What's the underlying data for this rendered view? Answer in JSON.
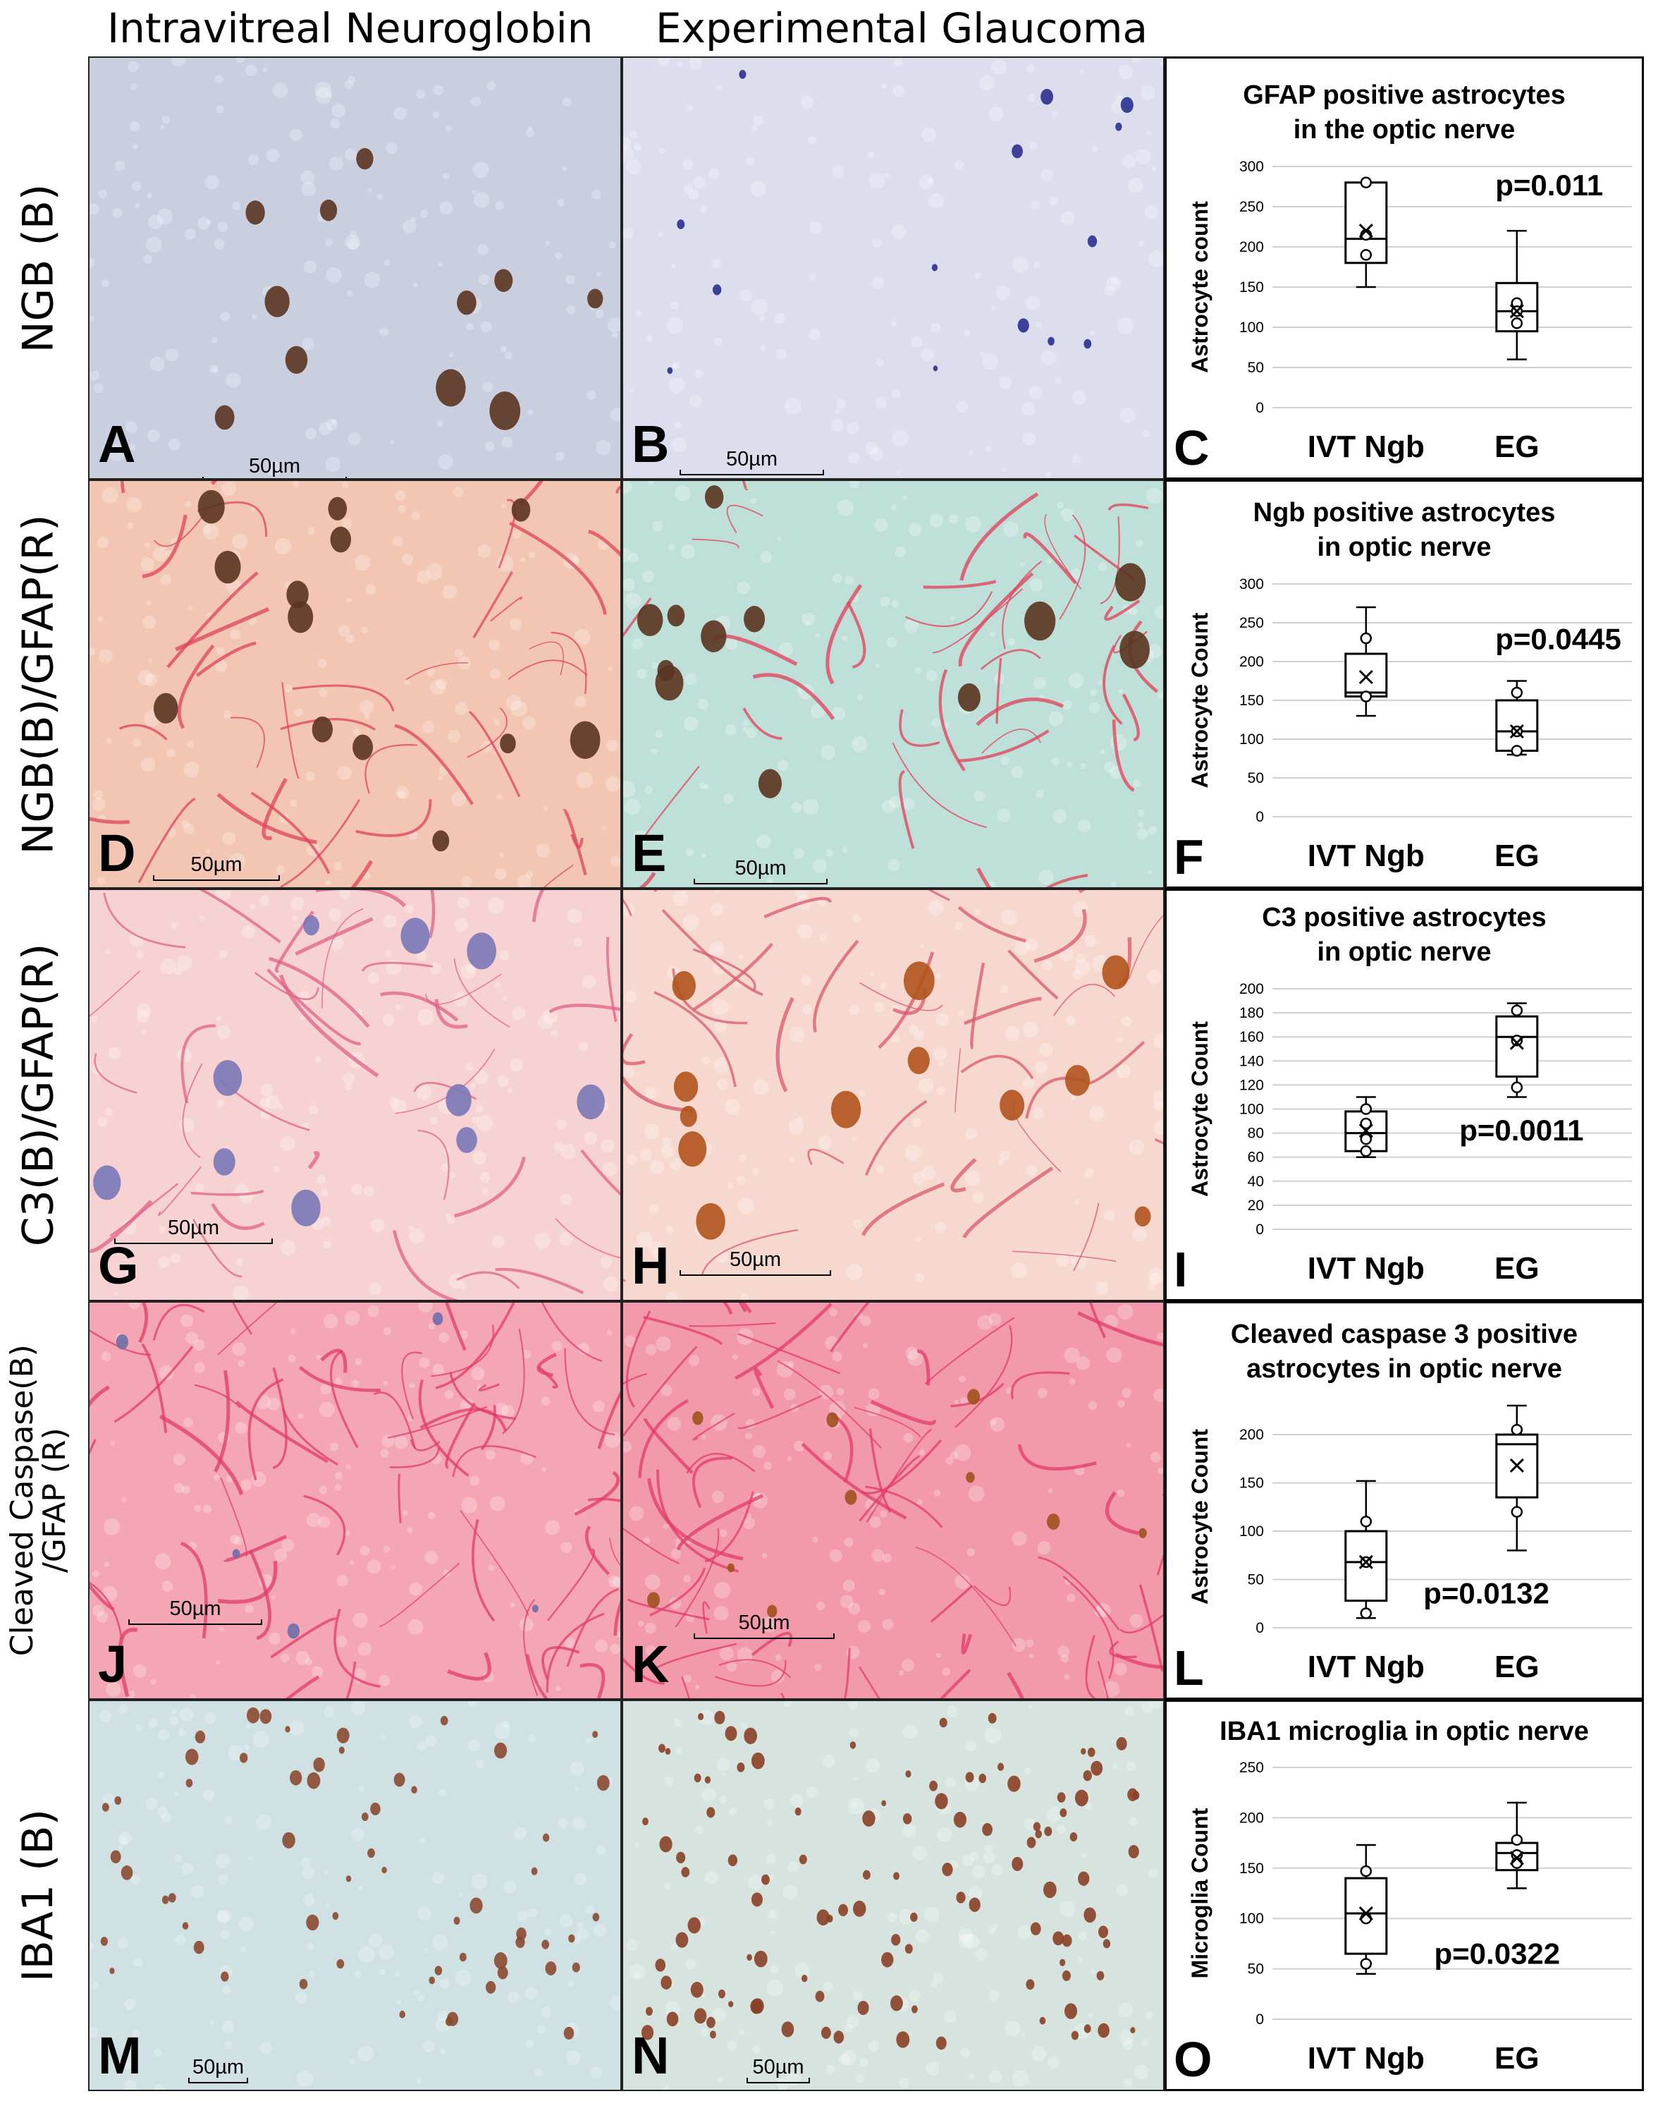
{
  "column_headers": [
    "Intravitreal Neuroglobin",
    "Experimental Glaucoma"
  ],
  "rows": [
    {
      "label": "NGB (B)",
      "left_panel": "A",
      "right_panel": "B",
      "chart_panel": "C",
      "left_scale": "50µm",
      "right_scale": "50µm",
      "left_stain": "brown nuclei on blue-grey background",
      "right_stain": "blue nuclei on pale background"
    },
    {
      "label": "NGB(B)/GFAP(R)",
      "left_panel": "D",
      "right_panel": "E",
      "chart_panel": "F",
      "left_scale": "50µm",
      "right_scale": "50µm",
      "left_stain": "red GFAP fibers with brown nuclei",
      "right_stain": "red fibers on teal background"
    },
    {
      "label": "C3(B)/GFAP(R)",
      "left_panel": "G",
      "right_panel": "H",
      "chart_panel": "I",
      "left_scale": "50µm",
      "right_scale": "50µm",
      "left_stain": "pink fibers with blue nuclei",
      "right_stain": "pink fibers with brown cells"
    },
    {
      "label": "Cleaved Caspase(B)\n/GFAP (R)",
      "left_panel": "J",
      "right_panel": "K",
      "chart_panel": "L",
      "left_scale": "50µm",
      "right_scale": "50µm",
      "left_stain": "dense red-pink fiber network",
      "right_stain": "dense red-pink fiber network with brown cells"
    },
    {
      "label": "IBA1 (B)",
      "left_panel": "M",
      "right_panel": "N",
      "chart_panel": "O",
      "left_scale": "50µm",
      "right_scale": "50µm",
      "left_stain": "light blue background with sparse brown microglia",
      "right_stain": "light blue background with dense brown microglia"
    }
  ],
  "colors": {
    "ngb_bg": "#c9cfdf",
    "nucleus_brown": "#5a3420",
    "nucleus_blue": "#2b2f8f",
    "gfap_red": "#e0405a",
    "pink_bg": "#f6d3d2",
    "teal_bg": "#bfe0d8",
    "iba_bg": "#cfe1e3"
  },
  "chart_data": [
    {
      "type": "box",
      "panel": "C",
      "title": "GFAP positive astrocytes\nin the optic nerve",
      "ylabel": "Astrocyte count",
      "categories": [
        "IVT Ngb",
        "EG"
      ],
      "ylim": [
        0,
        300
      ],
      "yticks": [
        0,
        50,
        100,
        150,
        200,
        250,
        300
      ],
      "p_value": "p=0.011",
      "series": [
        {
          "category": "IVT Ngb",
          "min": 150,
          "q1": 180,
          "median": 210,
          "q3": 280,
          "max": 280,
          "mean": 220,
          "points": [
            280,
            215,
            190
          ]
        },
        {
          "category": "EG",
          "min": 60,
          "q1": 95,
          "median": 120,
          "q3": 155,
          "max": 220,
          "mean": 120,
          "points": [
            130,
            120,
            105
          ]
        }
      ]
    },
    {
      "type": "box",
      "panel": "F",
      "title": "Ngb positive astrocytes\nin optic nerve",
      "ylabel": "Astrocyte Count",
      "categories": [
        "IVT Ngb",
        "EG"
      ],
      "ylim": [
        0,
        300
      ],
      "yticks": [
        0,
        50,
        100,
        150,
        200,
        250,
        300
      ],
      "p_value": "p=0.0445",
      "series": [
        {
          "category": "IVT Ngb",
          "min": 130,
          "q1": 155,
          "median": 160,
          "q3": 210,
          "max": 270,
          "mean": 180,
          "points": [
            230,
            155
          ]
        },
        {
          "category": "EG",
          "min": 80,
          "q1": 85,
          "median": 110,
          "q3": 150,
          "max": 175,
          "mean": 110,
          "points": [
            160,
            110,
            85
          ]
        }
      ]
    },
    {
      "type": "box",
      "panel": "I",
      "title": "C3 positive astrocytes\nin optic nerve",
      "ylabel": "Astrocyte Count",
      "categories": [
        "IVT Ngb",
        "EG"
      ],
      "ylim": [
        0,
        200
      ],
      "yticks": [
        0,
        20,
        40,
        60,
        80,
        100,
        120,
        140,
        160,
        180,
        200
      ],
      "p_value": "p=0.0011",
      "series": [
        {
          "category": "IVT Ngb",
          "min": 60,
          "q1": 65,
          "median": 80,
          "q3": 98,
          "max": 110,
          "mean": 82,
          "points": [
            100,
            88,
            75,
            65
          ]
        },
        {
          "category": "EG",
          "min": 110,
          "q1": 127,
          "median": 160,
          "q3": 177,
          "max": 188,
          "mean": 155,
          "points": [
            182,
            157,
            118
          ]
        }
      ]
    },
    {
      "type": "box",
      "panel": "L",
      "title": "Cleaved caspase 3 positive\nastrocytes in optic nerve",
      "ylabel": "Astrocyte Count",
      "categories": [
        "IVT Ngb",
        "EG"
      ],
      "ylim": [
        0,
        230
      ],
      "yticks": [
        0,
        50,
        100,
        150,
        200
      ],
      "p_value": "p=0.0132",
      "series": [
        {
          "category": "IVT Ngb",
          "min": 10,
          "q1": 28,
          "median": 68,
          "q3": 100,
          "max": 152,
          "mean": 68,
          "points": [
            110,
            68,
            15
          ]
        },
        {
          "category": "EG",
          "min": 80,
          "q1": 135,
          "median": 190,
          "q3": 200,
          "max": 230,
          "mean": 168,
          "points": [
            205,
            120
          ]
        }
      ]
    },
    {
      "type": "box",
      "panel": "O",
      "title": "IBA1 microglia in optic nerve",
      "ylabel": "Microglia Count",
      "categories": [
        "IVT Ngb",
        "EG"
      ],
      "ylim": [
        0,
        250
      ],
      "yticks": [
        0,
        50,
        100,
        150,
        200,
        250
      ],
      "p_value": "p=0.0322",
      "series": [
        {
          "category": "IVT Ngb",
          "min": 45,
          "q1": 65,
          "median": 105,
          "q3": 140,
          "max": 173,
          "mean": 105,
          "points": [
            147,
            100,
            55
          ]
        },
        {
          "category": "EG",
          "min": 130,
          "q1": 148,
          "median": 165,
          "q3": 175,
          "max": 215,
          "mean": 160,
          "points": [
            178,
            163,
            155
          ]
        }
      ]
    }
  ]
}
